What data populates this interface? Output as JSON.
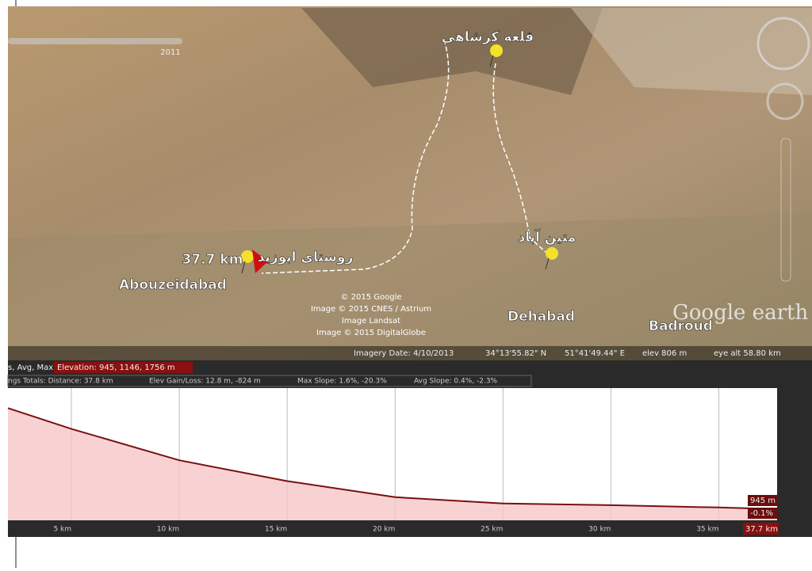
{
  "map": {
    "slider_label": "2011",
    "labels": {
      "castle": "قلعه کرشاهی",
      "village": "روستای ابوزید",
      "distance": "37.7 km",
      "abouzeidabad": "Abouzeidabad",
      "matinabad": "متین آباد",
      "dehabad": "Dehabad",
      "badroud": "Badroud"
    },
    "logo": "Google earth",
    "copyright": [
      "© 2015 Google",
      "Image © 2015 CNES / Astrium",
      "Image Landsat",
      "Image © 2015 DigitalGlobe"
    ],
    "status": {
      "imagery_date": "Imagery Date: 4/10/2013",
      "lat": "34°13'55.82\" N",
      "lon": "51°41'49.44\" E",
      "elev": "elev  806 m",
      "eye_alt": "eye alt  58.80 km"
    }
  },
  "profile": {
    "graph_label": "s, Avg, Max:",
    "elevation_summary": "Elevation: 945, 1146, 1756 m",
    "totals": [
      "ngs Totals: Distance: 37.8 km",
      "Elev Gain/Loss: 12.8 m, -824 m",
      "Max Slope: 1.6%, -20.3%",
      "Avg Slope: 0.4%, -2.3%"
    ],
    "x": [
      2.06,
      5,
      10,
      15,
      20,
      25,
      30,
      35,
      37.7
    ],
    "elevation": [
      1756,
      1589,
      1337,
      1170,
      1041,
      990,
      977,
      958,
      945
    ],
    "xlim": [
      2.06,
      37.7
    ],
    "ylim": [
      855,
      1917
    ],
    "xticks": [
      {
        "value": 5,
        "label": "5 km"
      },
      {
        "value": 10,
        "label": "10 km"
      },
      {
        "value": 15,
        "label": "15 km"
      },
      {
        "value": 20,
        "label": "20 km"
      },
      {
        "value": 25,
        "label": "25 km"
      },
      {
        "value": 30,
        "label": "30 km"
      },
      {
        "value": 35,
        "label": "35 km"
      }
    ],
    "end_elevation": "945 m",
    "end_slope": "-0.1%",
    "end_distance": "37.7 km",
    "fill_color": "#f6c6c8",
    "line_color": "#7a1010"
  }
}
